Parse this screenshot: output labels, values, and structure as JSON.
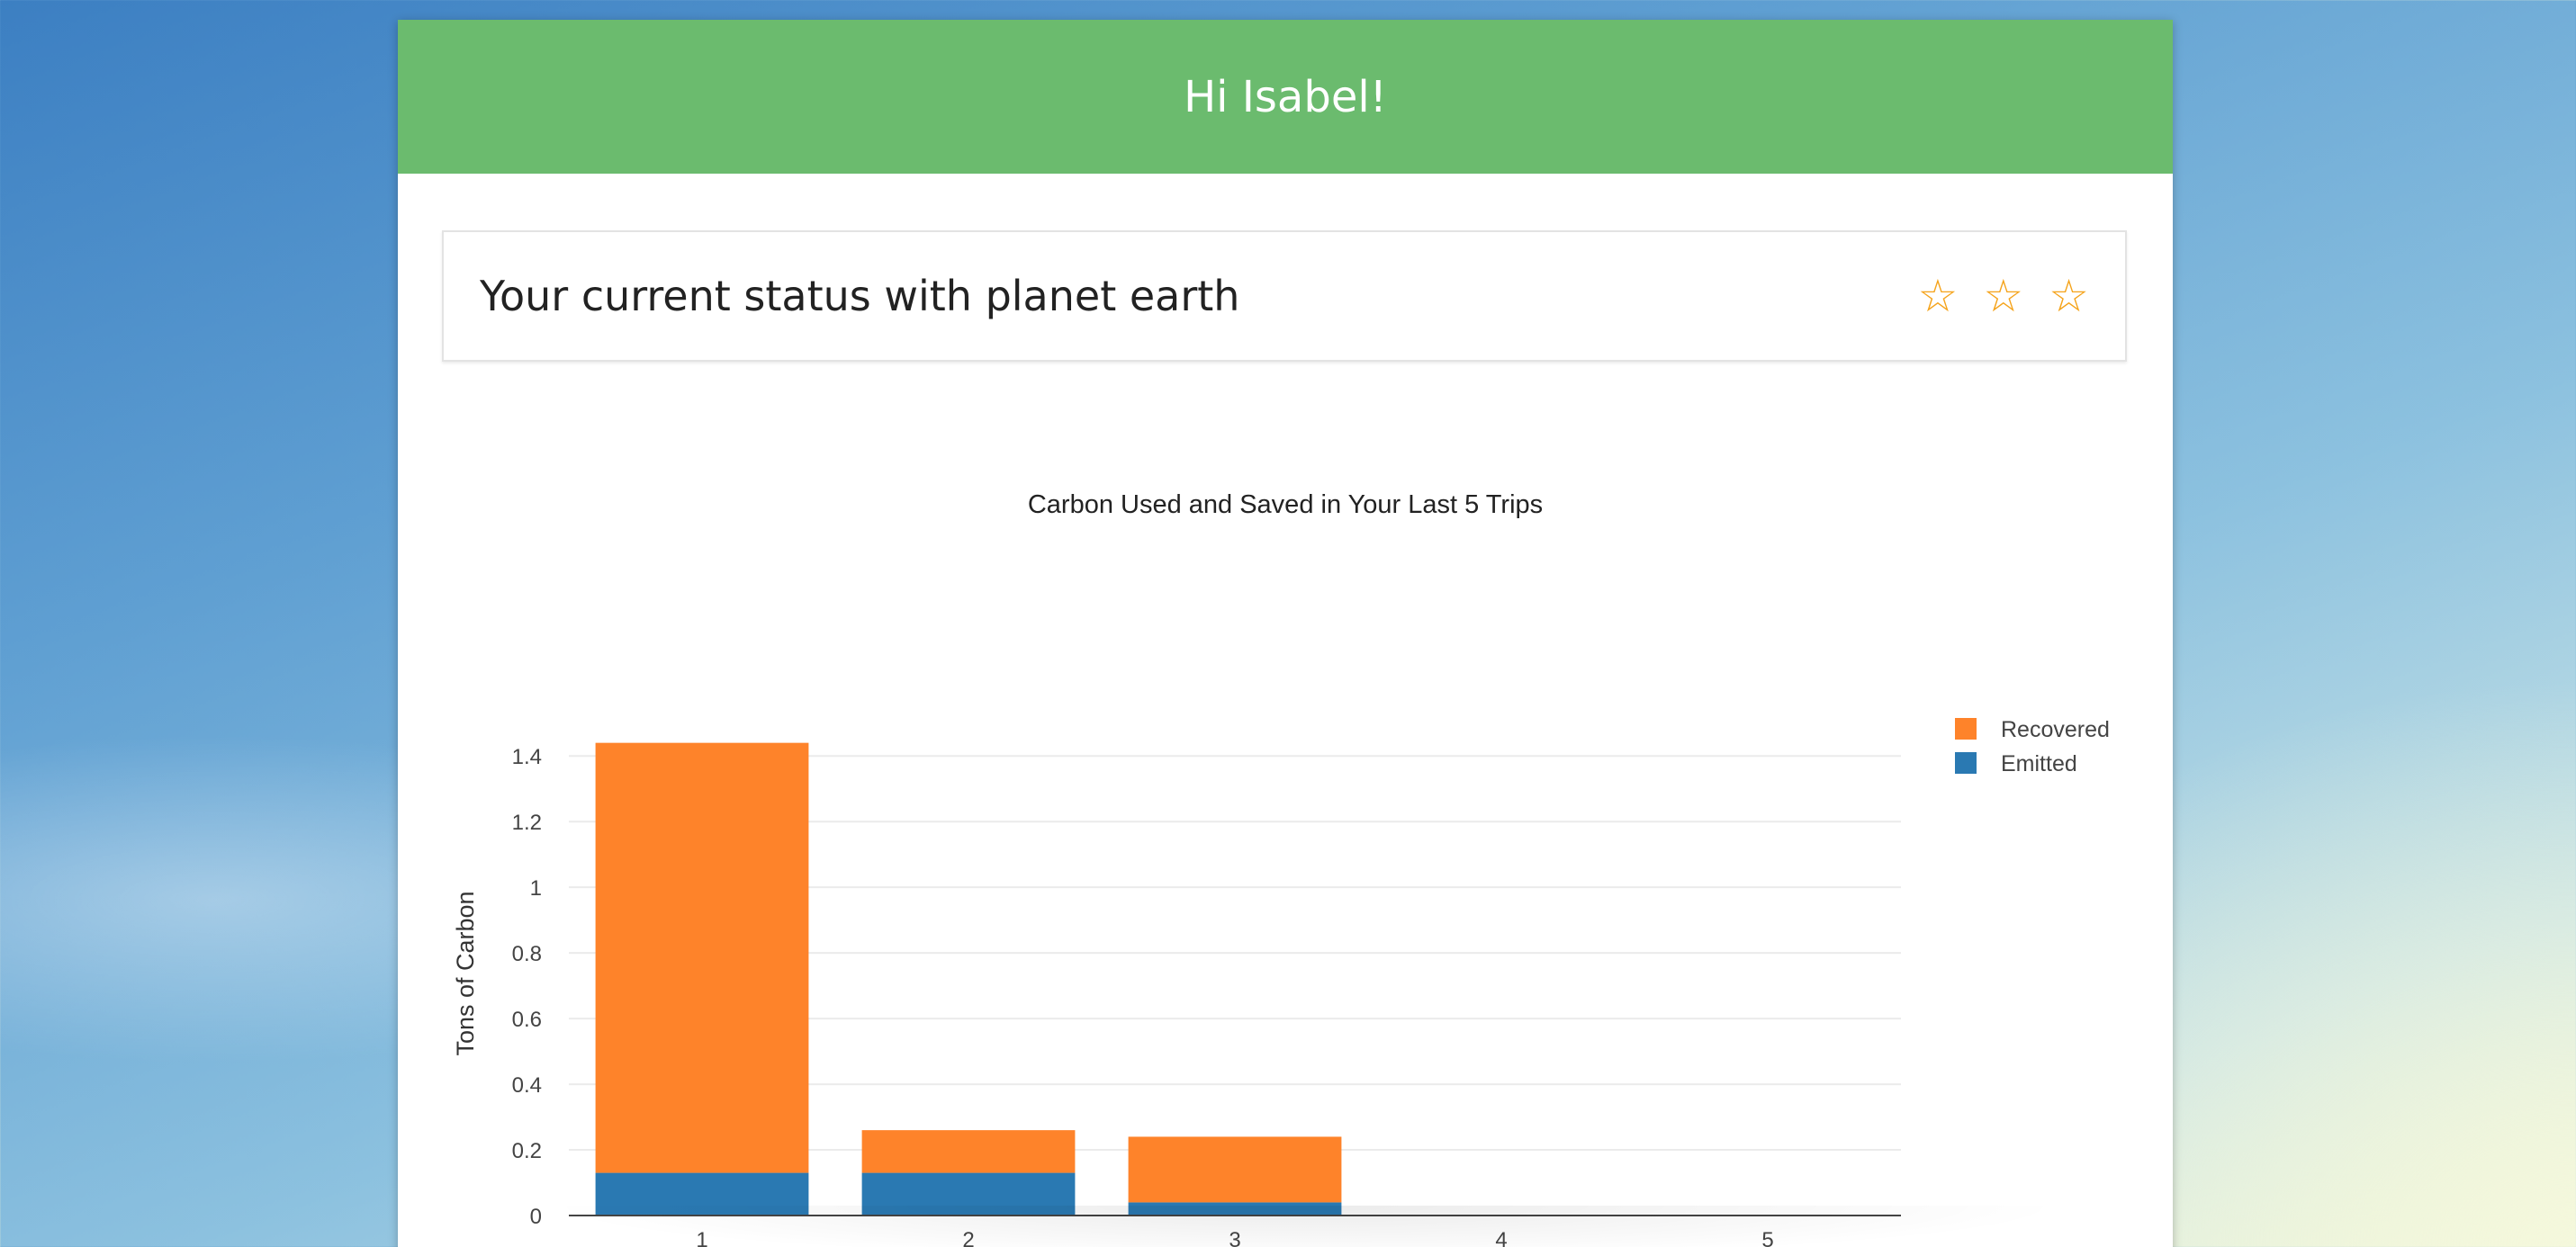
{
  "header": {
    "greeting": "Hi Isabel!"
  },
  "status": {
    "text": "Your current status with planet earth",
    "stars": [
      "☆",
      "☆",
      "☆"
    ],
    "star_icon": "star-outline-icon",
    "star_color": "#f5a31a"
  },
  "colors": {
    "header_green": "#6bbb6e",
    "recovered": "#fe832a",
    "emitted": "#2a79b2"
  },
  "chart_data": {
    "type": "bar",
    "stacked": true,
    "title": "Carbon Used and Saved in Your Last 5 Trips",
    "xlabel": "",
    "ylabel": "Tons of Carbon",
    "categories": [
      "1",
      "2",
      "3",
      "4",
      "5"
    ],
    "series": [
      {
        "name": "Emitted",
        "color": "#2a79b2",
        "values": [
          0.13,
          0.13,
          0.04,
          0,
          0
        ]
      },
      {
        "name": "Recovered",
        "color": "#fe832a",
        "values": [
          1.31,
          0.13,
          0.2,
          0,
          0
        ]
      }
    ],
    "yticks": [
      "0",
      "0.2",
      "0.4",
      "0.6",
      "0.8",
      "1",
      "1.2",
      "1.4"
    ],
    "ytick_values": [
      0,
      0.2,
      0.4,
      0.6,
      0.8,
      1,
      1.2,
      1.4
    ],
    "ylim": [
      0,
      1.45
    ],
    "legend": [
      "Recovered",
      "Emitted"
    ],
    "legend_position": "top-right",
    "grid": true
  }
}
